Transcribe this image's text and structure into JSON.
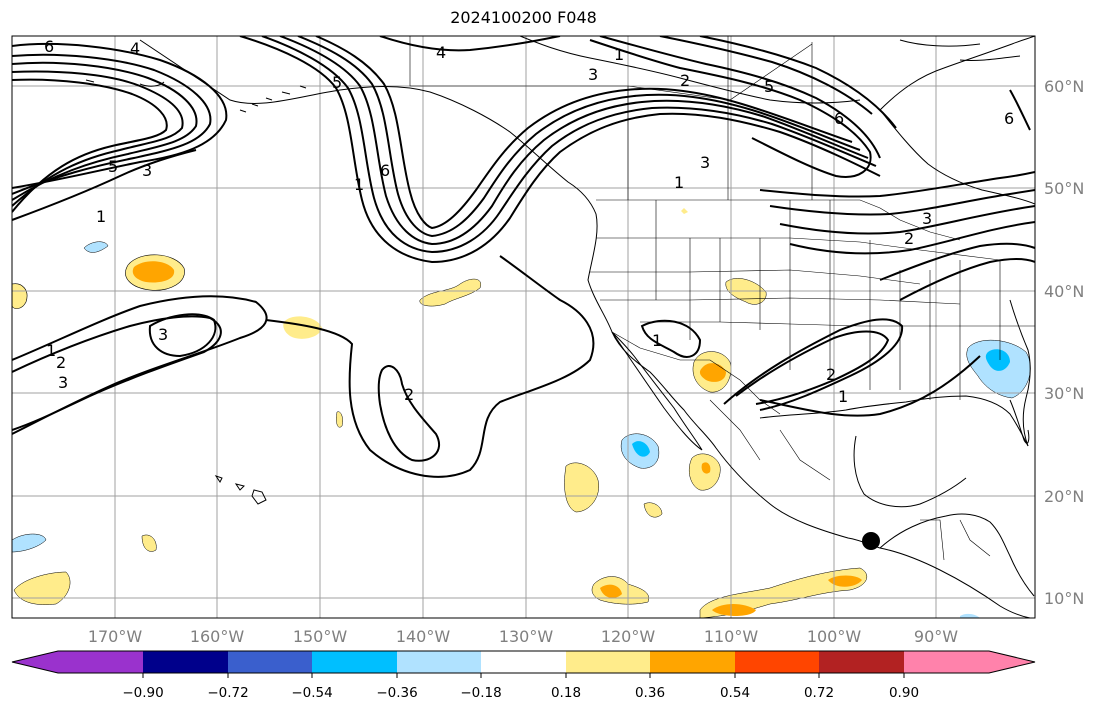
{
  "title": "2024100200 F048",
  "axes": {
    "lat_labels": [
      "60°N",
      "50°N",
      "40°N",
      "30°N",
      "20°N",
      "10°N"
    ],
    "lon_labels": [
      "170°W",
      "160°W",
      "150°W",
      "140°W",
      "130°W",
      "120°W",
      "110°W",
      "100°W",
      "90°W"
    ]
  },
  "colorbar": {
    "colors": [
      "#9a32cd",
      "#00008b",
      "#3a5fcd",
      "#00bfff",
      "#b0e2ff",
      "#ffffff",
      "#ffec8b",
      "#ffa500",
      "#ff4500",
      "#b22222",
      "#ff82ab"
    ],
    "tick_labels": [
      "−0.90",
      "−0.72",
      "−0.54",
      "−0.36",
      "−0.18",
      "0.18",
      "0.36",
      "0.54",
      "0.72",
      "0.90"
    ]
  },
  "contour_labels": [
    "6",
    "4",
    "5",
    "3",
    "1",
    "2",
    "6",
    "1",
    "3",
    "2",
    "4",
    "5",
    "6",
    "3",
    "1",
    "5",
    "3",
    "1",
    "3",
    "2",
    "1",
    "3",
    "2",
    "1",
    "2",
    "1",
    "6"
  ],
  "station_marker": "black-dot"
}
